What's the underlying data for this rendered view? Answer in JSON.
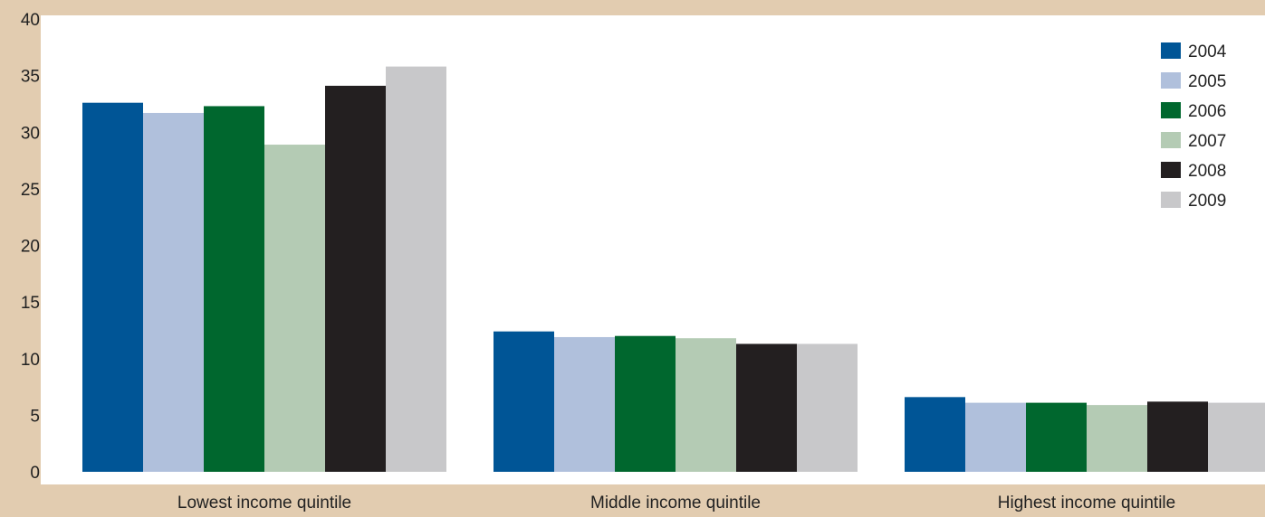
{
  "chart_data": {
    "type": "bar",
    "title": "",
    "xlabel": "",
    "ylabel": "",
    "ylim": [
      0,
      40
    ],
    "yticks": [
      0,
      5,
      10,
      15,
      20,
      25,
      30,
      35,
      40
    ],
    "grid": false,
    "legend_position": "top-right",
    "categories": [
      "Lowest income quintile",
      "Middle income quintile",
      "Highest income quintile"
    ],
    "series": [
      {
        "name": "2004",
        "color": "#005596",
        "values": [
          32.6,
          12.4,
          6.6
        ]
      },
      {
        "name": "2005",
        "color": "#b0c0dc",
        "values": [
          31.7,
          11.9,
          6.1
        ]
      },
      {
        "name": "2006",
        "color": "#00672e",
        "values": [
          32.3,
          12.0,
          6.1
        ]
      },
      {
        "name": "2007",
        "color": "#b4cbb4",
        "values": [
          28.9,
          11.8,
          5.9
        ]
      },
      {
        "name": "2008",
        "color": "#231f20",
        "values": [
          34.1,
          11.3,
          6.2
        ]
      },
      {
        "name": "2009",
        "color": "#c8c8ca",
        "values": [
          35.8,
          11.3,
          6.1
        ]
      }
    ]
  }
}
